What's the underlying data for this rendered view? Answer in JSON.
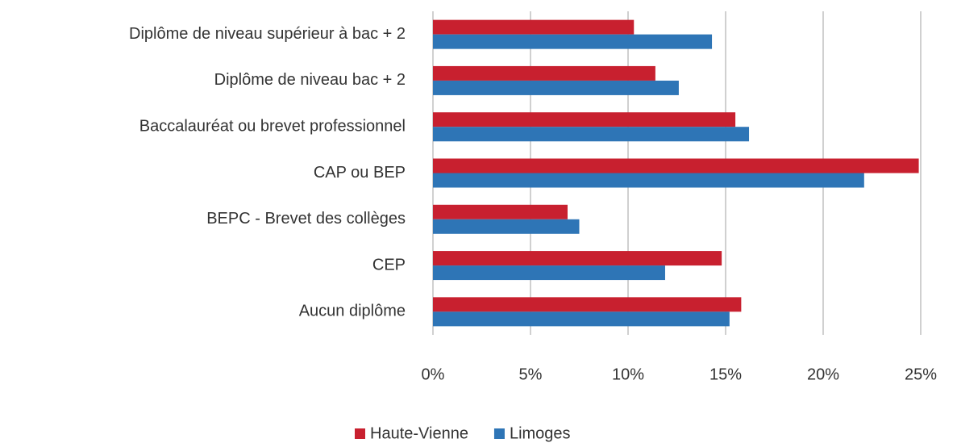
{
  "chart_data": {
    "type": "hbar",
    "categories": [
      "Diplôme de niveau supérieur à bac + 2",
      "Diplôme de niveau bac + 2",
      "Baccalauréat ou brevet professionnel",
      "CAP ou BEP",
      "BEPC - Brevet des collèges",
      "CEP",
      "Aucun diplôme"
    ],
    "series": [
      {
        "name": "Haute-Vienne",
        "color": "#c8202f",
        "values": [
          10.3,
          11.4,
          15.5,
          24.9,
          6.9,
          14.8,
          15.8
        ]
      },
      {
        "name": "Limoges",
        "color": "#2e75b6",
        "values": [
          14.3,
          12.6,
          16.2,
          22.1,
          7.5,
          11.9,
          15.2
        ]
      }
    ],
    "xlim": [
      0,
      25
    ],
    "xticks": [
      {
        "value": 0,
        "label": "0%"
      },
      {
        "value": 5,
        "label": "5%"
      },
      {
        "value": 10,
        "label": "10%"
      },
      {
        "value": 15,
        "label": "15%"
      },
      {
        "value": 20,
        "label": "20%"
      },
      {
        "value": 25,
        "label": "25%"
      }
    ],
    "grid": true,
    "legend": "bottom"
  }
}
